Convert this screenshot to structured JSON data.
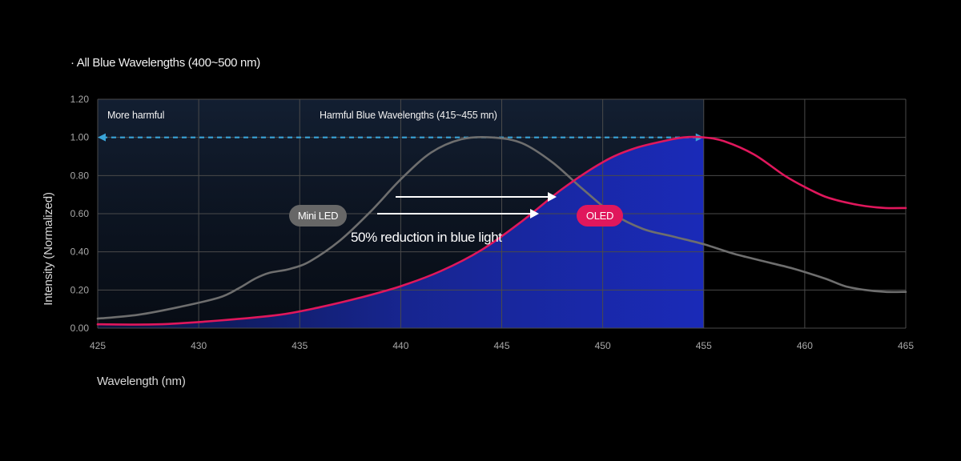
{
  "chart_data": {
    "type": "line",
    "title": "· All Blue Wavelengths (400~500 nm)",
    "xlabel": "Wavelength (nm)",
    "ylabel": "Intensity (Normalized)",
    "xlim": [
      425,
      465
    ],
    "ylim": [
      0,
      1.2
    ],
    "x_ticks": [
      "425",
      "430",
      "435",
      "440",
      "445",
      "450",
      "455",
      "460",
      "465"
    ],
    "y_ticks": [
      "0.00",
      "0.20",
      "0.40",
      "0.60",
      "0.80",
      "1.00",
      "1.20"
    ],
    "grid": true,
    "series": [
      {
        "name": "Mini LED",
        "color": "#6e6e6e",
        "x": [
          425,
          427,
          429,
          431,
          432,
          432.8,
          433.5,
          434.5,
          435.5,
          437,
          438.5,
          440,
          441.5,
          443,
          444.5,
          446,
          447.5,
          449,
          450.5,
          452,
          453.5,
          455,
          456.5,
          458,
          459.5,
          461,
          462,
          463,
          464,
          465
        ],
        "y": [
          0.05,
          0.07,
          0.11,
          0.16,
          0.21,
          0.26,
          0.29,
          0.31,
          0.35,
          0.46,
          0.61,
          0.78,
          0.92,
          0.99,
          1.0,
          0.97,
          0.87,
          0.73,
          0.6,
          0.52,
          0.48,
          0.44,
          0.39,
          0.35,
          0.31,
          0.26,
          0.22,
          0.2,
          0.19,
          0.19
        ]
      },
      {
        "name": "OLED",
        "color": "#e0175c",
        "x": [
          425,
          428,
          431,
          434,
          436,
          438,
          440,
          442,
          444,
          446,
          448,
          450,
          451.5,
          453,
          454,
          455,
          456,
          457.5,
          459,
          460,
          461,
          462,
          463,
          464,
          465
        ],
        "y": [
          0.02,
          0.02,
          0.04,
          0.07,
          0.11,
          0.16,
          0.22,
          0.3,
          0.41,
          0.56,
          0.73,
          0.87,
          0.94,
          0.98,
          1.0,
          1.0,
          0.98,
          0.91,
          0.8,
          0.74,
          0.69,
          0.66,
          0.64,
          0.63,
          0.63
        ]
      }
    ],
    "shaded_region": {
      "x_range": [
        425,
        455
      ],
      "color": "#1a2bb0"
    },
    "reference_line": {
      "y": 1.0,
      "x_range": [
        425,
        455
      ],
      "color": "#3aa5d8"
    },
    "annotations": {
      "more_harmful": "More harmful",
      "harmful_range": "Harmful Blue Wavelengths (415~455 mn)",
      "minled_badge": "Mini LED",
      "oled_badge": "OLED",
      "reduction": "50% reduction in blue light"
    }
  }
}
